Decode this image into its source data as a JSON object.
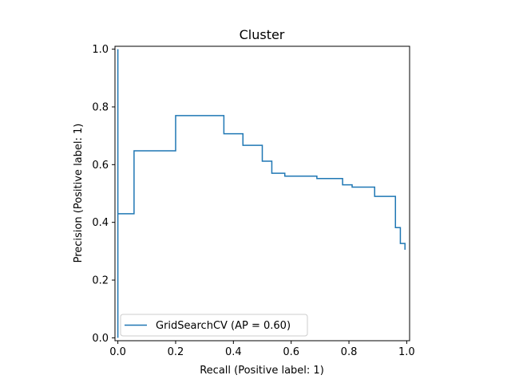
{
  "chart_data": {
    "type": "line",
    "title": "Cluster",
    "xlabel": "Recall (Positive label: 1)",
    "ylabel": "Precision (Positive label: 1)",
    "xlim": [
      -0.01,
      1.01
    ],
    "ylim": [
      -0.01,
      1.01
    ],
    "xticks": [
      0.0,
      0.2,
      0.4,
      0.6,
      0.8,
      1.0
    ],
    "yticks": [
      0.0,
      0.2,
      0.4,
      0.6,
      0.8,
      1.0
    ],
    "tick_labels": [
      "0.0",
      "0.2",
      "0.4",
      "0.6",
      "0.8",
      "1.0"
    ],
    "grid": false,
    "legend_position": "lower left",
    "series": [
      {
        "name": "GridSearchCV (AP = 0.60)",
        "color": "#1f77b4",
        "drawstyle": "steps-post",
        "x": [
          0.0,
          0.0,
          0.0,
          0.056,
          0.056,
          0.2,
          0.2,
          0.367,
          0.367,
          0.433,
          0.433,
          0.5,
          0.5,
          0.533,
          0.533,
          0.578,
          0.578,
          0.689,
          0.689,
          0.778,
          0.778,
          0.811,
          0.811,
          0.889,
          0.889,
          0.961,
          0.961,
          0.978,
          0.978,
          0.994,
          0.994
        ],
        "y": [
          0.0,
          1.0,
          0.43,
          0.43,
          0.648,
          0.648,
          0.77,
          0.77,
          0.707,
          0.707,
          0.667,
          0.667,
          0.612,
          0.612,
          0.57,
          0.57,
          0.56,
          0.56,
          0.552,
          0.552,
          0.53,
          0.53,
          0.522,
          0.522,
          0.49,
          0.49,
          0.382,
          0.382,
          0.327,
          0.327,
          0.305
        ]
      }
    ]
  }
}
